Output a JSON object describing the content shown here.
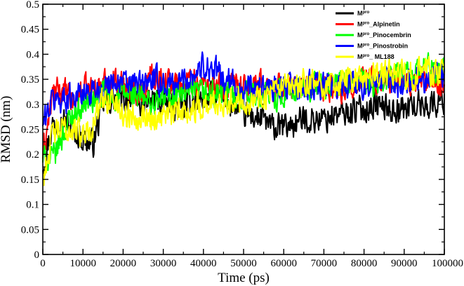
{
  "chart_data": {
    "type": "line",
    "title": "",
    "xlabel": "Time (ps)",
    "ylabel": "RMSD (nm)",
    "xlim": [
      0,
      100000
    ],
    "ylim": [
      0,
      0.5
    ],
    "xticks": [
      0,
      10000,
      20000,
      30000,
      40000,
      50000,
      60000,
      70000,
      80000,
      90000,
      100000
    ],
    "xtick_labels": [
      "0",
      "10000",
      "20000",
      "30000",
      "40000",
      "50000",
      "60000",
      "70000",
      "80000",
      "90000",
      "100000"
    ],
    "yticks": [
      0,
      0.05,
      0.1,
      0.15,
      0.2,
      0.25,
      0.3,
      0.35,
      0.4,
      0.45,
      0.5
    ],
    "ytick_labels": [
      "0",
      "0.05",
      "0.1",
      "0.15",
      "0.2",
      "0.25",
      "0.3",
      "0.35",
      "0.4",
      "0.45",
      "0.5"
    ],
    "grid": false,
    "legend_position": "top-right",
    "x": [
      0,
      2500,
      5000,
      7500,
      10000,
      12500,
      15000,
      17500,
      20000,
      22500,
      25000,
      27500,
      30000,
      32500,
      35000,
      37500,
      40000,
      42500,
      45000,
      47500,
      50000,
      52500,
      55000,
      57500,
      60000,
      62500,
      65000,
      67500,
      70000,
      72500,
      75000,
      77500,
      80000,
      82500,
      85000,
      87500,
      90000,
      92500,
      95000,
      97500,
      100000
    ],
    "series": [
      {
        "name_base": "M",
        "name_sup": "pro",
        "name_suffix": "",
        "color": "#000000",
        "values": [
          0.18,
          0.26,
          0.27,
          0.25,
          0.23,
          0.22,
          0.3,
          0.31,
          0.31,
          0.32,
          0.3,
          0.31,
          0.3,
          0.3,
          0.29,
          0.31,
          0.31,
          0.32,
          0.31,
          0.3,
          0.28,
          0.275,
          0.27,
          0.25,
          0.255,
          0.26,
          0.27,
          0.27,
          0.27,
          0.28,
          0.28,
          0.29,
          0.29,
          0.3,
          0.295,
          0.29,
          0.29,
          0.3,
          0.3,
          0.3,
          0.31
        ]
      },
      {
        "name_base": "M",
        "name_sup": "pro",
        "name_suffix": "_Alpinetin",
        "color": "#ff0000",
        "values": [
          0.2,
          0.32,
          0.33,
          0.3,
          0.33,
          0.33,
          0.34,
          0.35,
          0.34,
          0.33,
          0.33,
          0.36,
          0.35,
          0.34,
          0.34,
          0.35,
          0.34,
          0.34,
          0.33,
          0.33,
          0.33,
          0.33,
          0.34,
          0.33,
          0.34,
          0.33,
          0.34,
          0.33,
          0.33,
          0.34,
          0.33,
          0.34,
          0.35,
          0.35,
          0.35,
          0.35,
          0.35,
          0.35,
          0.35,
          0.34,
          0.34
        ]
      },
      {
        "name_base": "M",
        "name_sup": "pro",
        "name_suffix": "_Pinocembrin",
        "color": "#00ff00",
        "values": [
          0.19,
          0.19,
          0.24,
          0.28,
          0.3,
          0.31,
          0.32,
          0.31,
          0.32,
          0.32,
          0.31,
          0.3,
          0.31,
          0.32,
          0.32,
          0.32,
          0.32,
          0.32,
          0.32,
          0.32,
          0.32,
          0.32,
          0.32,
          0.32,
          0.32,
          0.32,
          0.33,
          0.34,
          0.33,
          0.34,
          0.34,
          0.34,
          0.34,
          0.34,
          0.35,
          0.35,
          0.36,
          0.36,
          0.37,
          0.37,
          0.37
        ]
      },
      {
        "name_base": "M",
        "name_sup": "pro",
        "name_suffix": "_Pinostrobin",
        "color": "#0000ff",
        "values": [
          0.26,
          0.31,
          0.31,
          0.32,
          0.32,
          0.33,
          0.33,
          0.35,
          0.34,
          0.34,
          0.34,
          0.35,
          0.34,
          0.34,
          0.35,
          0.36,
          0.38,
          0.37,
          0.35,
          0.34,
          0.33,
          0.33,
          0.33,
          0.33,
          0.33,
          0.34,
          0.33,
          0.34,
          0.33,
          0.34,
          0.34,
          0.34,
          0.34,
          0.34,
          0.35,
          0.34,
          0.34,
          0.35,
          0.35,
          0.36,
          0.36
        ]
      },
      {
        "name_base": "M",
        "name_sup": "pro",
        "name_suffix": "_ ML188",
        "color": "#ffff00",
        "values": [
          0.15,
          0.24,
          0.25,
          0.25,
          0.24,
          0.26,
          0.31,
          0.31,
          0.28,
          0.28,
          0.28,
          0.27,
          0.28,
          0.28,
          0.29,
          0.29,
          0.3,
          0.3,
          0.31,
          0.31,
          0.31,
          0.31,
          0.32,
          0.32,
          0.33,
          0.33,
          0.34,
          0.34,
          0.34,
          0.34,
          0.35,
          0.35,
          0.35,
          0.36,
          0.36,
          0.36,
          0.36,
          0.36,
          0.37,
          0.36,
          0.36
        ]
      }
    ]
  }
}
